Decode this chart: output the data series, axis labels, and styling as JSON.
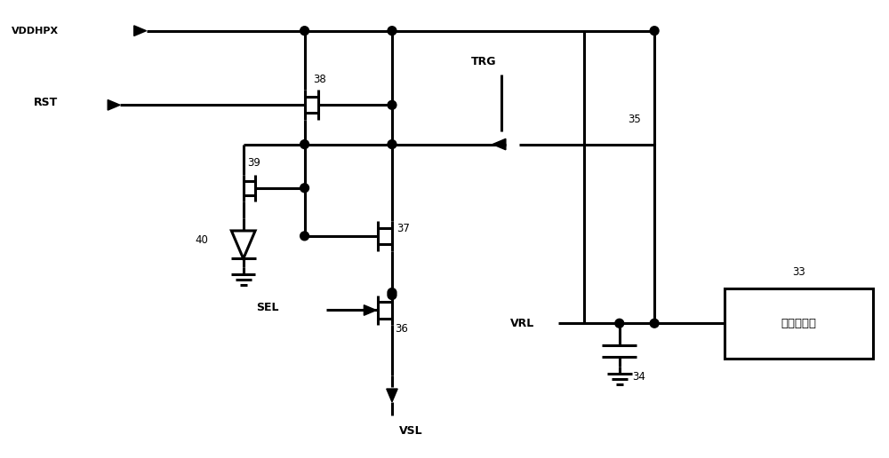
{
  "bg": "#ffffff",
  "lc": "#000000",
  "lw": 2.2,
  "fw": 10.0,
  "fh": 5.16,
  "vdd_label": "VDDHPX",
  "rst_label": "RST",
  "sel_label": "SEL",
  "trg_label": "TRG",
  "vsl_label": "VSL",
  "vrl_label": "VRL",
  "cp_label": "电荷泵电路",
  "labels": {
    "38": "38",
    "39": "39",
    "37": "37",
    "36": "36",
    "40": "40",
    "35": "35",
    "33": "33",
    "34": "34"
  }
}
